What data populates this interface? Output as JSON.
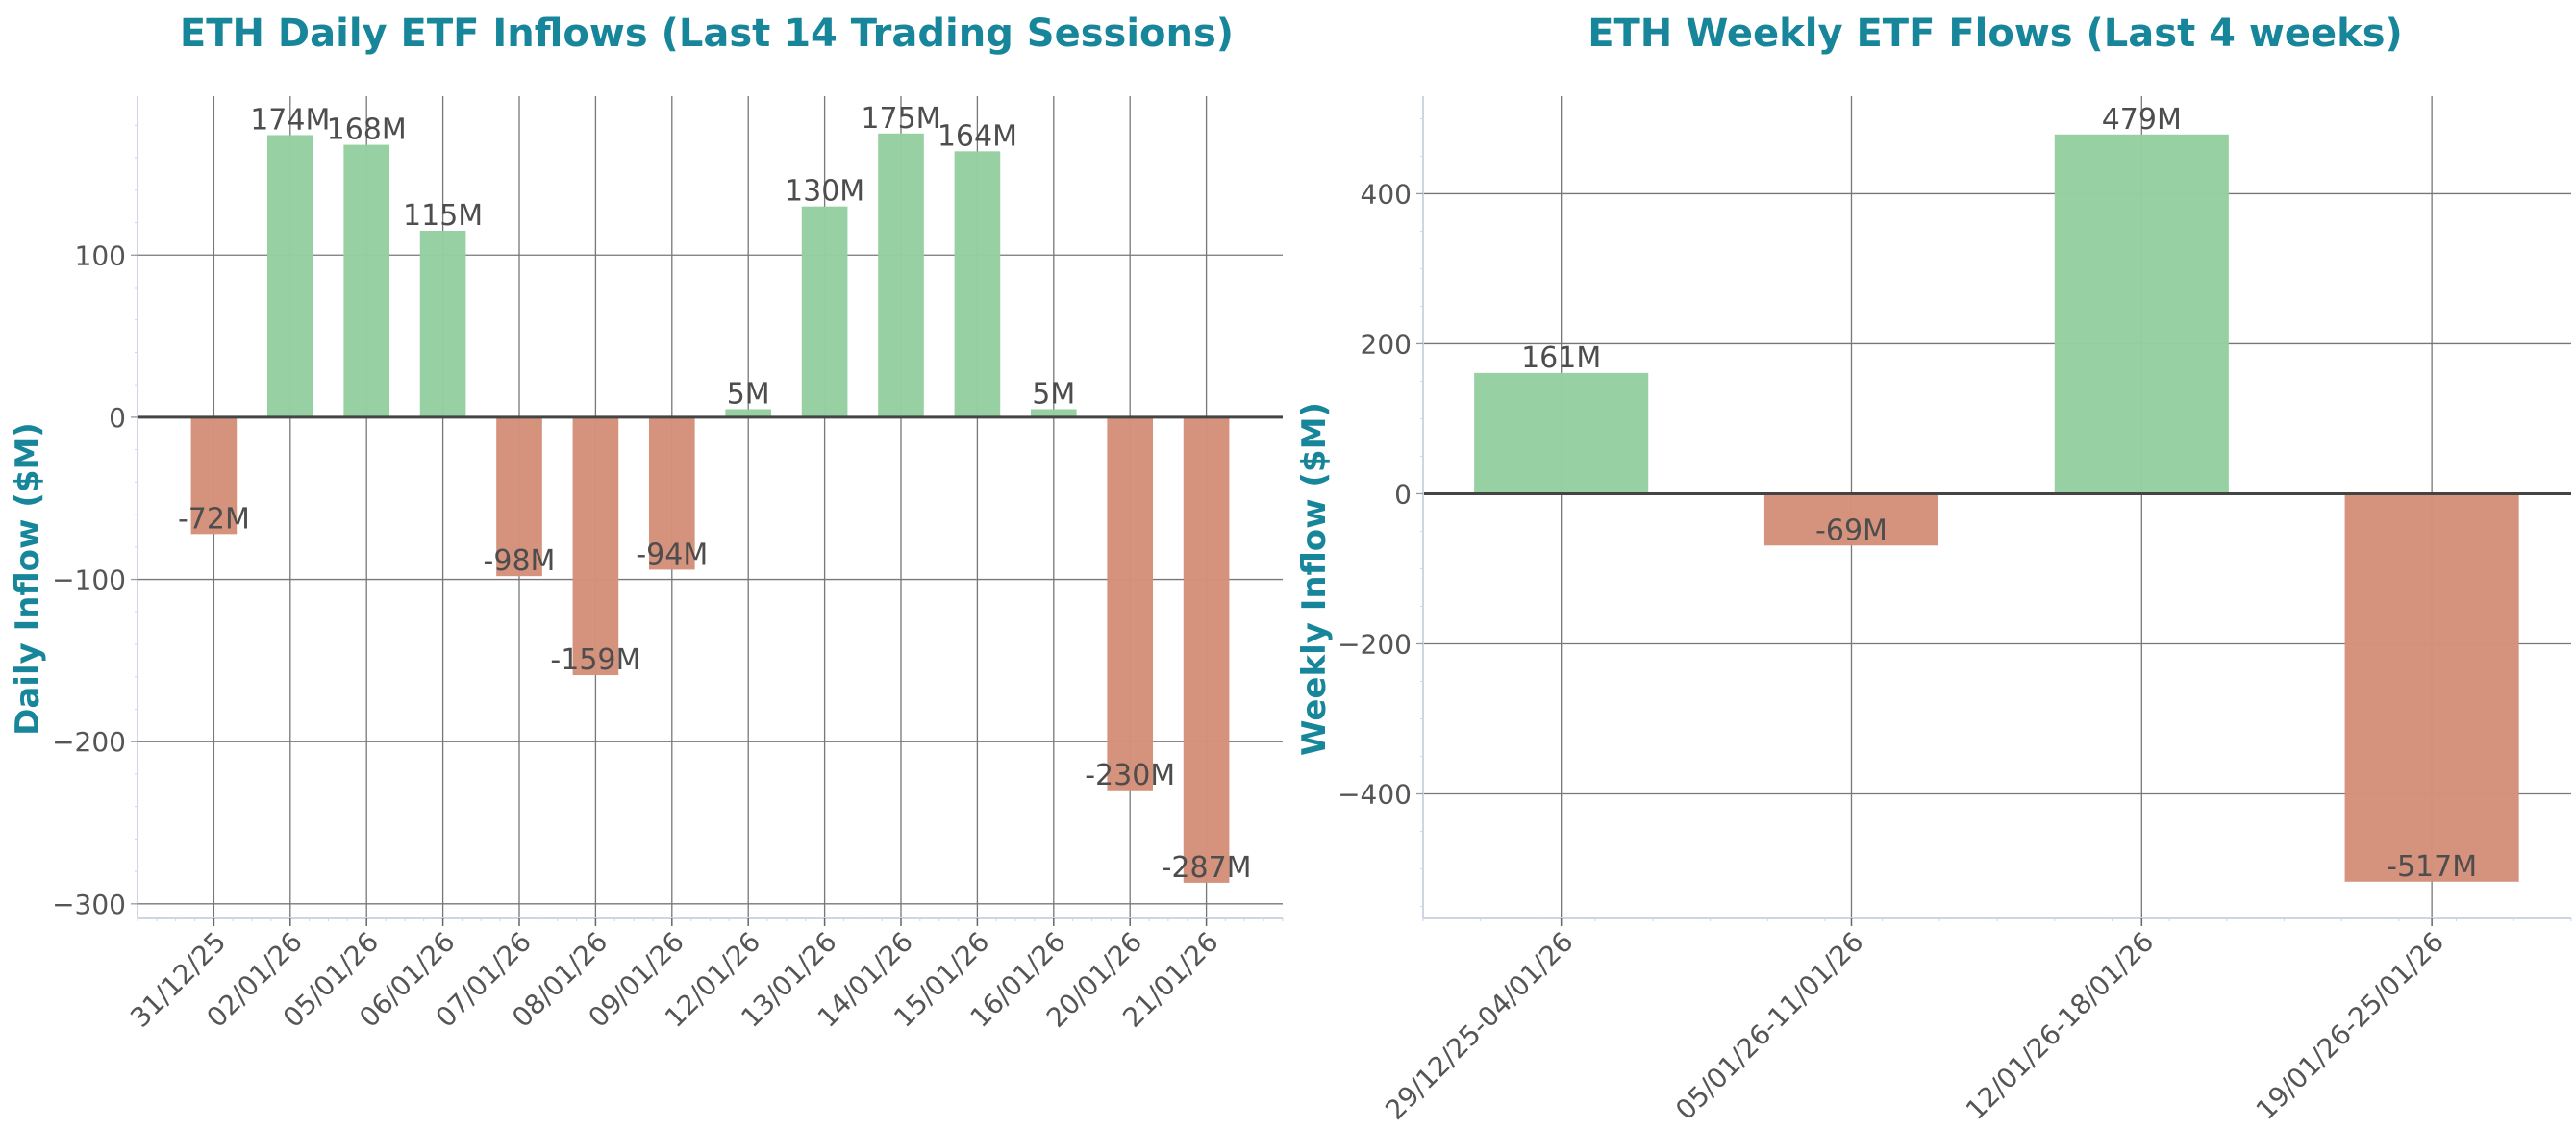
{
  "chart_data": [
    {
      "type": "bar",
      "title": "ETH Daily ETF Inflows (Last 14 Trading Sessions)",
      "xlabel": "",
      "ylabel": "Daily Inflow ($M)",
      "categories": [
        "31/12/25",
        "02/01/26",
        "05/01/26",
        "06/01/26",
        "07/01/26",
        "08/01/26",
        "09/01/26",
        "12/01/26",
        "13/01/26",
        "14/01/26",
        "15/01/26",
        "16/01/26",
        "20/01/26",
        "21/01/26"
      ],
      "values": [
        -72,
        174,
        168,
        115,
        -98,
        -159,
        -94,
        5,
        130,
        175,
        164,
        5,
        -230,
        -287
      ],
      "data_labels": [
        "-72M",
        "174M",
        "168M",
        "115M",
        "-98M",
        "-159M",
        "-94M",
        "5M",
        "130M",
        "175M",
        "164M",
        "5M",
        "-230M",
        "-287M"
      ],
      "yticks": [
        -300,
        -200,
        -100,
        0,
        100
      ],
      "ytick_labels": [
        "−300",
        "−200",
        "−100",
        "0",
        "100"
      ],
      "ylim": [
        -309,
        198
      ],
      "grid": true,
      "colors": {
        "positive": "#95cfa0",
        "negative": "#d4907a",
        "title": "#17869a"
      }
    },
    {
      "type": "bar",
      "title": "ETH Weekly ETF Flows (Last 4 weeks)",
      "xlabel": "",
      "ylabel": "Weekly Inflow ($M)",
      "categories": [
        "29/12/25-04/01/26",
        "05/01/26-11/01/26",
        "12/01/26-18/01/26",
        "19/01/26-25/01/26"
      ],
      "values": [
        161,
        -69,
        479,
        -517
      ],
      "data_labels": [
        "161M",
        "-69M",
        "479M",
        "-517M"
      ],
      "yticks": [
        -400,
        -200,
        0,
        200,
        400
      ],
      "ytick_labels": [
        "−400",
        "−200",
        "0",
        "200",
        "400"
      ],
      "ylim": [
        -566,
        530
      ],
      "grid": true,
      "colors": {
        "positive": "#95cfa0",
        "negative": "#d4907a",
        "title": "#17869a"
      }
    }
  ]
}
